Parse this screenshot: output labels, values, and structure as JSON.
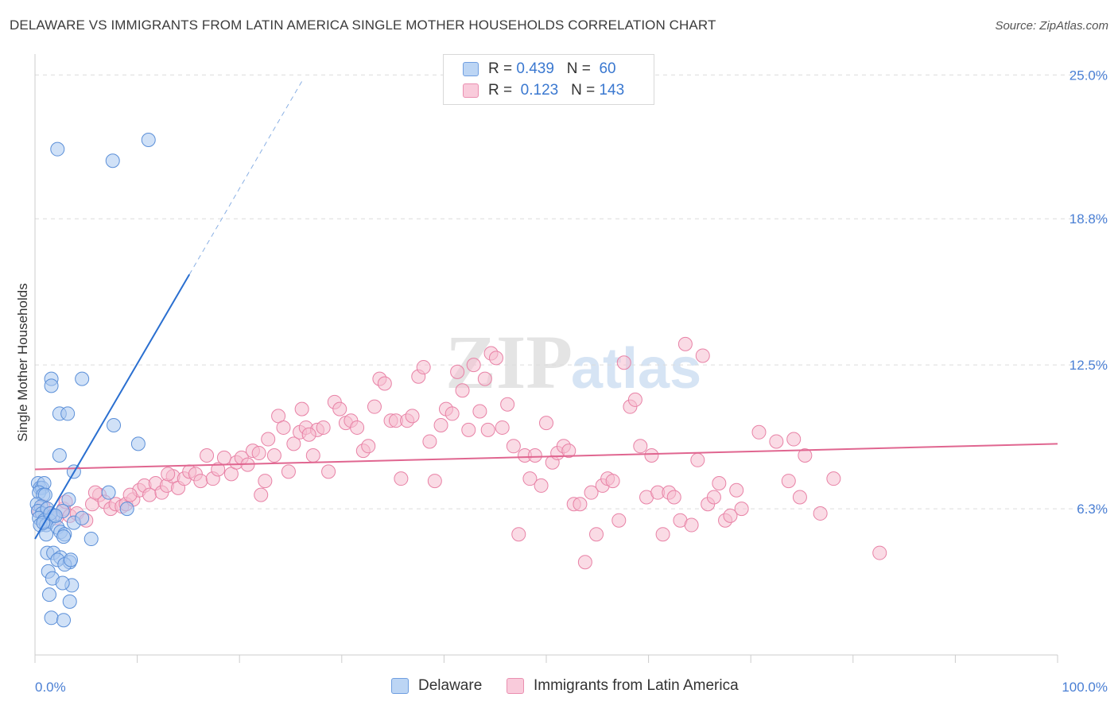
{
  "header": {
    "title": "DELAWARE VS IMMIGRANTS FROM LATIN AMERICA SINGLE MOTHER HOUSEHOLDS CORRELATION CHART",
    "source": "Source: ZipAtlas.com"
  },
  "watermark": {
    "zip": "ZIP",
    "atlas": "atlas"
  },
  "legend": {
    "rows": [
      {
        "r_label": "R =",
        "r_value": "0.439",
        "n_label": "N =",
        "n_value": "60"
      },
      {
        "r_label": "R =",
        "r_value": "0.123",
        "n_label": "N =",
        "n_value": "143"
      }
    ]
  },
  "bottom_legend": {
    "series_a": "Delaware",
    "series_b": "Immigrants from Latin America"
  },
  "chart_data": {
    "type": "scatter",
    "title": "DELAWARE VS IMMIGRANTS FROM LATIN AMERICA SINGLE MOTHER HOUSEHOLDS CORRELATION CHART",
    "ylabel": "Single Mother Households",
    "xlabel": "",
    "xlim": [
      0,
      100
    ],
    "ylim": [
      0,
      25.9
    ],
    "x_ticks": [
      "0.0%",
      "100.0%"
    ],
    "y_ticks": [
      {
        "value": 6.3,
        "label": "6.3%"
      },
      {
        "value": 12.5,
        "label": "12.5%"
      },
      {
        "value": 18.8,
        "label": "18.8%"
      },
      {
        "value": 25.0,
        "label": "25.0%"
      }
    ],
    "grid": true,
    "legend_position": "top-center",
    "colors": {
      "series_a_fill": "#a9c8f0",
      "series_a_stroke": "#5b8fd8",
      "series_a_line": "#2a6fd0",
      "series_b_fill": "#f6bdd0",
      "series_b_stroke": "#e882a6",
      "series_b_line": "#e06690"
    },
    "series": [
      {
        "name": "Delaware",
        "R": 0.439,
        "N": 60,
        "trend": {
          "x0": 0,
          "y0": 5.0,
          "x1": 15.1,
          "y1": 16.4,
          "dash_to_x": 26.2,
          "dash_to_y": 24.8
        },
        "points": [
          [
            2.2,
            21.8
          ],
          [
            7.6,
            21.3
          ],
          [
            11.1,
            22.2
          ],
          [
            1.6,
            11.9
          ],
          [
            1.6,
            11.6
          ],
          [
            4.6,
            11.9
          ],
          [
            2.4,
            10.4
          ],
          [
            3.2,
            10.4
          ],
          [
            7.7,
            9.9
          ],
          [
            10.1,
            9.1
          ],
          [
            2.4,
            8.6
          ],
          [
            3.8,
            7.9
          ],
          [
            0.3,
            7.4
          ],
          [
            0.5,
            7.2
          ],
          [
            0.7,
            7.2
          ],
          [
            0.9,
            7.4
          ],
          [
            0.4,
            7.0
          ],
          [
            0.8,
            6.9
          ],
          [
            1.0,
            6.9
          ],
          [
            3.3,
            6.7
          ],
          [
            7.2,
            7.0
          ],
          [
            0.2,
            6.5
          ],
          [
            0.6,
            6.4
          ],
          [
            0.3,
            6.2
          ],
          [
            0.7,
            6.1
          ],
          [
            1.2,
            6.3
          ],
          [
            1.8,
            6.0
          ],
          [
            2.7,
            6.2
          ],
          [
            0.4,
            5.9
          ],
          [
            0.9,
            5.8
          ],
          [
            1.4,
            5.8
          ],
          [
            0.5,
            5.6
          ],
          [
            1.1,
            5.6
          ],
          [
            2.2,
            5.5
          ],
          [
            3.8,
            5.7
          ],
          [
            4.6,
            5.9
          ],
          [
            9.0,
            6.3
          ],
          [
            1.1,
            5.2
          ],
          [
            2.5,
            5.3
          ],
          [
            2.9,
            5.2
          ],
          [
            2.8,
            5.1
          ],
          [
            5.5,
            5.0
          ],
          [
            1.2,
            4.4
          ],
          [
            1.8,
            4.4
          ],
          [
            2.5,
            4.2
          ],
          [
            2.2,
            4.1
          ],
          [
            3.4,
            4.0
          ],
          [
            2.9,
            3.9
          ],
          [
            3.5,
            4.1
          ],
          [
            1.3,
            3.6
          ],
          [
            1.7,
            3.3
          ],
          [
            3.6,
            3.0
          ],
          [
            2.7,
            3.1
          ],
          [
            1.4,
            2.6
          ],
          [
            3.4,
            2.3
          ],
          [
            1.6,
            1.6
          ],
          [
            2.8,
            1.5
          ],
          [
            0.8,
            5.7
          ],
          [
            1.5,
            6.1
          ],
          [
            2.0,
            6.0
          ]
        ]
      },
      {
        "name": "Immigrants from Latin America",
        "R": 0.123,
        "N": 143,
        "trend": {
          "x0": 0,
          "y0": 8.0,
          "x1": 100,
          "y1": 9.1
        },
        "points": [
          [
            0.4,
            6.2
          ],
          [
            1.0,
            6.0
          ],
          [
            1.4,
            6.1
          ],
          [
            2.1,
            5.9
          ],
          [
            2.8,
            6.3
          ],
          [
            3.4,
            6.0
          ],
          [
            4.1,
            6.1
          ],
          [
            5.0,
            5.8
          ],
          [
            5.6,
            6.5
          ],
          [
            6.3,
            6.9
          ],
          [
            6.8,
            6.6
          ],
          [
            7.4,
            6.3
          ],
          [
            7.9,
            6.5
          ],
          [
            8.5,
            6.4
          ],
          [
            8.9,
            6.5
          ],
          [
            9.6,
            6.7
          ],
          [
            10.2,
            7.1
          ],
          [
            10.7,
            7.3
          ],
          [
            11.2,
            6.9
          ],
          [
            11.8,
            7.4
          ],
          [
            12.4,
            7.0
          ],
          [
            12.9,
            7.3
          ],
          [
            13.5,
            7.7
          ],
          [
            14.0,
            7.2
          ],
          [
            14.6,
            7.6
          ],
          [
            15.1,
            7.9
          ],
          [
            15.7,
            7.8
          ],
          [
            16.2,
            7.5
          ],
          [
            16.8,
            8.6
          ],
          [
            17.4,
            7.6
          ],
          [
            17.9,
            8.0
          ],
          [
            18.5,
            8.5
          ],
          [
            19.2,
            7.8
          ],
          [
            19.7,
            8.3
          ],
          [
            20.2,
            8.5
          ],
          [
            20.8,
            8.2
          ],
          [
            21.3,
            8.8
          ],
          [
            21.9,
            8.7
          ],
          [
            22.5,
            7.5
          ],
          [
            22.1,
            6.9
          ],
          [
            22.8,
            9.3
          ],
          [
            23.4,
            8.6
          ],
          [
            23.8,
            10.3
          ],
          [
            24.3,
            9.8
          ],
          [
            24.8,
            7.9
          ],
          [
            25.3,
            9.1
          ],
          [
            25.9,
            9.6
          ],
          [
            26.5,
            9.8
          ],
          [
            26.1,
            10.6
          ],
          [
            27.2,
            8.6
          ],
          [
            27.6,
            9.7
          ],
          [
            28.2,
            9.8
          ],
          [
            28.7,
            7.9
          ],
          [
            29.3,
            10.9
          ],
          [
            29.8,
            10.6
          ],
          [
            30.4,
            10.0
          ],
          [
            30.9,
            10.1
          ],
          [
            31.5,
            9.8
          ],
          [
            32.1,
            8.8
          ],
          [
            32.6,
            9.0
          ],
          [
            33.2,
            10.7
          ],
          [
            33.7,
            11.9
          ],
          [
            34.2,
            11.7
          ],
          [
            34.8,
            10.1
          ],
          [
            35.3,
            10.1
          ],
          [
            35.8,
            7.6
          ],
          [
            36.4,
            10.1
          ],
          [
            36.9,
            10.3
          ],
          [
            37.5,
            12.0
          ],
          [
            38.0,
            12.4
          ],
          [
            38.6,
            9.2
          ],
          [
            39.1,
            7.5
          ],
          [
            39.7,
            9.9
          ],
          [
            40.2,
            10.6
          ],
          [
            40.8,
            10.4
          ],
          [
            41.3,
            12.2
          ],
          [
            41.8,
            11.4
          ],
          [
            42.4,
            9.7
          ],
          [
            42.9,
            12.5
          ],
          [
            43.5,
            10.5
          ],
          [
            44.0,
            11.9
          ],
          [
            44.6,
            13.0
          ],
          [
            45.1,
            12.8
          ],
          [
            45.7,
            9.8
          ],
          [
            46.2,
            10.8
          ],
          [
            46.8,
            9.0
          ],
          [
            47.3,
            5.2
          ],
          [
            47.9,
            8.6
          ],
          [
            48.4,
            7.6
          ],
          [
            48.9,
            8.6
          ],
          [
            49.5,
            7.3
          ],
          [
            50.0,
            10.0
          ],
          [
            50.6,
            8.3
          ],
          [
            51.1,
            8.7
          ],
          [
            51.7,
            9.0
          ],
          [
            52.2,
            8.8
          ],
          [
            52.7,
            6.5
          ],
          [
            53.3,
            6.5
          ],
          [
            53.8,
            4.0
          ],
          [
            54.4,
            7.0
          ],
          [
            54.9,
            5.2
          ],
          [
            55.5,
            7.3
          ],
          [
            56.0,
            7.6
          ],
          [
            56.5,
            7.5
          ],
          [
            57.1,
            5.8
          ],
          [
            57.6,
            12.6
          ],
          [
            58.2,
            10.7
          ],
          [
            58.7,
            11.0
          ],
          [
            59.2,
            9.0
          ],
          [
            59.8,
            6.8
          ],
          [
            60.3,
            8.6
          ],
          [
            60.9,
            7.0
          ],
          [
            61.4,
            5.2
          ],
          [
            62.0,
            7.0
          ],
          [
            62.5,
            6.8
          ],
          [
            63.1,
            5.8
          ],
          [
            63.6,
            13.4
          ],
          [
            64.2,
            5.6
          ],
          [
            64.8,
            8.4
          ],
          [
            65.3,
            12.9
          ],
          [
            65.8,
            6.5
          ],
          [
            66.4,
            6.8
          ],
          [
            66.9,
            7.4
          ],
          [
            67.5,
            5.8
          ],
          [
            68.0,
            6.0
          ],
          [
            68.6,
            7.1
          ],
          [
            69.1,
            6.3
          ],
          [
            70.8,
            9.6
          ],
          [
            72.5,
            9.2
          ],
          [
            73.7,
            7.5
          ],
          [
            74.2,
            9.3
          ],
          [
            74.8,
            6.8
          ],
          [
            75.3,
            8.6
          ],
          [
            76.8,
            6.1
          ],
          [
            78.1,
            7.6
          ],
          [
            82.6,
            4.4
          ],
          [
            0.8,
            6.4
          ],
          [
            3.0,
            6.6
          ],
          [
            5.9,
            7.0
          ],
          [
            9.3,
            6.9
          ],
          [
            13.0,
            7.8
          ],
          [
            26.8,
            9.5
          ],
          [
            44.3,
            9.7
          ]
        ]
      }
    ]
  }
}
